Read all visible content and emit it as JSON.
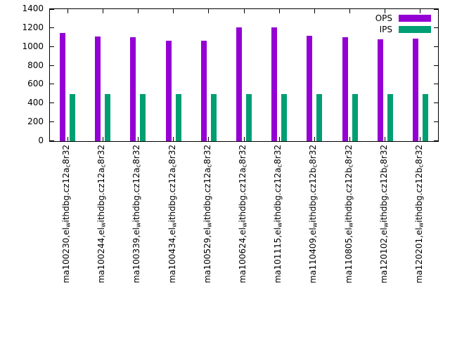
{
  "chart_data": {
    "type": "bar",
    "title": "",
    "xlabel": "",
    "ylabel": "",
    "ylim": [
      0,
      1400
    ],
    "yticks": [
      0,
      200,
      400,
      600,
      800,
      1000,
      1200,
      1400
    ],
    "grid": false,
    "legend_position": "top-right",
    "categories": [
      "ma100230,el_{w}ithdbg.cz12a_{c}8r32",
      "ma100244,el_{w}ithdbg.cz12a_{c}8r32",
      "ma100339,el_{w}ithdbg.cz12a_{c}8r32",
      "ma100434,el_{w}ithdbg.cz12a_{c}8r32",
      "ma100529,el_{w}ithdbg.cz12a_{c}8r32",
      "ma100624,el_{w}ithdbg.cz12a_{c}8r32",
      "ma101115,el_{w}ithdbg.cz12a_{c}8r32",
      "ma110409,el_{w}ithdbg.cz12b_{c}8r32",
      "ma110805,el_{w}ithdbg.cz12b_{c}8r32",
      "ma120102,el_{w}ithdbg.cz12b_{c}8r32",
      "ma120201,el_{w}ithdbg.cz12b_{c}8r32"
    ],
    "series": [
      {
        "name": "OPS",
        "color": "#9400d3",
        "values": [
          1150,
          1110,
          1100,
          1065,
          1065,
          1210,
          1205,
          1115,
          1105,
          1080,
          1085
        ]
      },
      {
        "name": "IPS",
        "color": "#009e73",
        "values": [
          500,
          500,
          500,
          500,
          500,
          500,
          500,
          500,
          500,
          500,
          500
        ]
      }
    ]
  }
}
